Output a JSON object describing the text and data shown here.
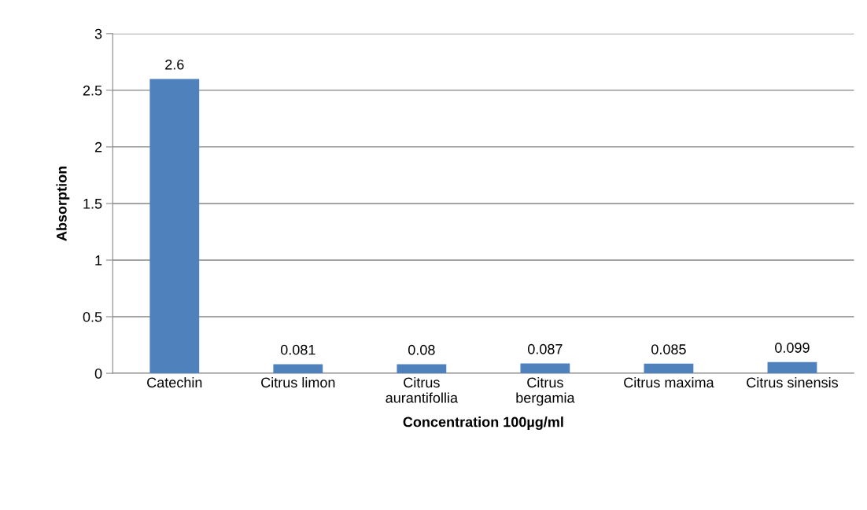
{
  "chart_data": {
    "type": "bar",
    "xlabel": "Concentration 100µg/ml",
    "ylabel": "Absorption",
    "categories": [
      "Catechin",
      "Citrus limon",
      "Citrus\naurantifollia",
      "Citrus\nbergamia",
      "Citrus maxima",
      "Citrus sinensis"
    ],
    "values": [
      2.6,
      0.081,
      0.08,
      0.087,
      0.085,
      0.099
    ],
    "color": "#4f81bd",
    "ylim": [
      0,
      3
    ],
    "yticks": [
      0,
      0.5,
      1,
      1.5,
      2,
      2.5,
      3
    ],
    "grid": "y",
    "data_labels": true
  }
}
